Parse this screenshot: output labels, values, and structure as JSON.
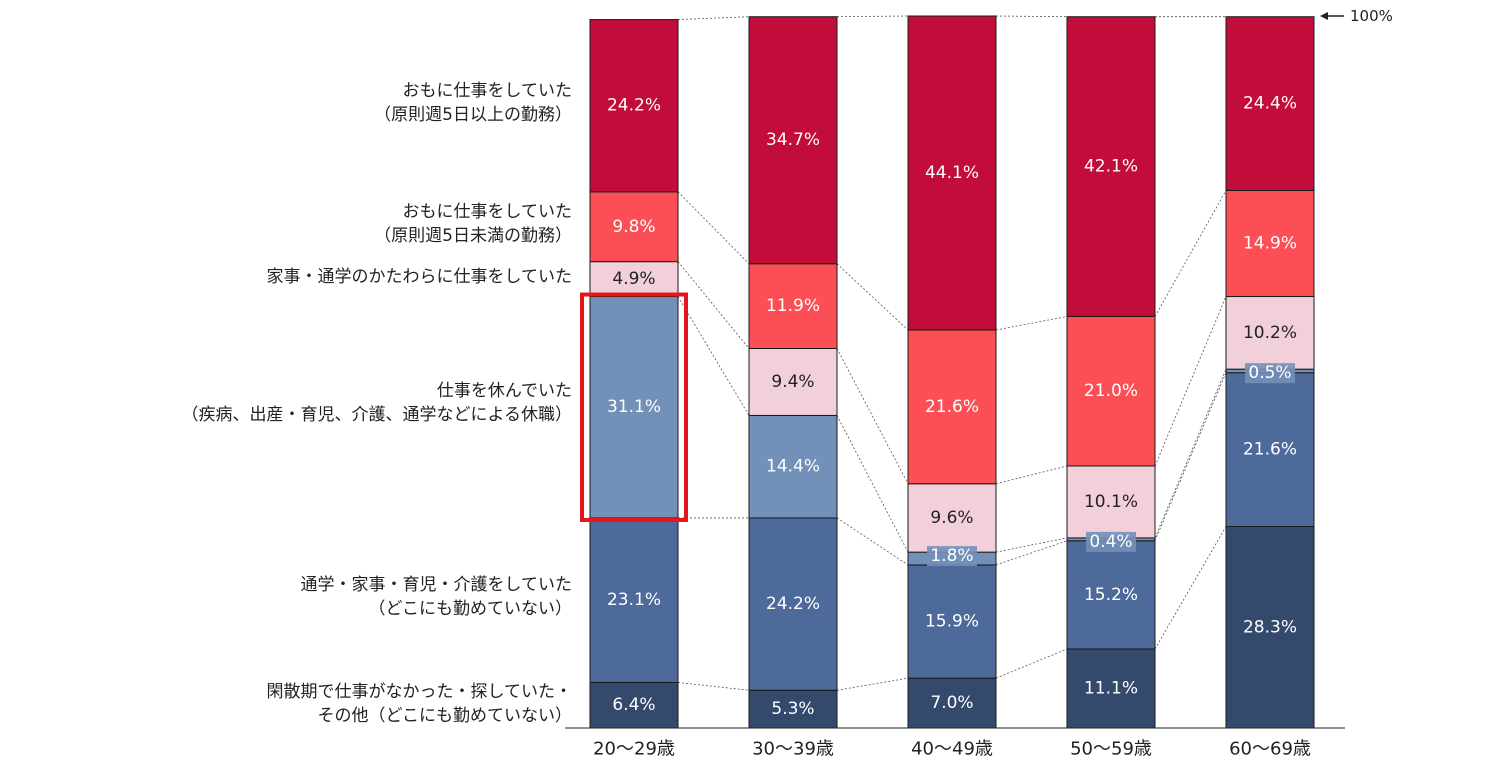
{
  "chart_data": {
    "type": "bar",
    "stacked": true,
    "percent": true,
    "categories": [
      "20〜29歳",
      "30〜39歳",
      "40〜49歳",
      "50〜59歳",
      "60〜69歳"
    ],
    "series": [
      {
        "name": "閑散期で仕事がなかった・探していた・その他（どこにも勤めていない）",
        "label_lines": [
          "閑散期で仕事がなかった・探していた・",
          "その他（どこにも勤めていない）"
        ],
        "color": "#344a6c",
        "text_color": "#ffffff",
        "values": [
          6.4,
          5.3,
          7.0,
          11.1,
          28.3
        ]
      },
      {
        "name": "通学・家事・育児・介護をしていた（どこにも勤めていない）",
        "label_lines": [
          "通学・家事・育児・介護をしていた",
          "（どこにも勤めていない）"
        ],
        "color": "#4d6a9a",
        "text_color": "#ffffff",
        "values": [
          23.1,
          24.2,
          15.9,
          15.2,
          21.6
        ]
      },
      {
        "name": "仕事を休んでいた（疾病、出産・育児、介護、通学などによる休職）",
        "label_lines": [
          "仕事を休んでいた",
          "（疾病、出産・育児、介護、通学などによる休職）"
        ],
        "color": "#7290b8",
        "text_color": "#ffffff",
        "values": [
          31.1,
          14.4,
          1.8,
          0.4,
          0.5
        ]
      },
      {
        "name": "家事・通学のかたわらに仕事をしていた",
        "label_lines": [
          "家事・通学のかたわらに仕事をしていた"
        ],
        "color": "#f1d0da",
        "text_color": "#222222",
        "values": [
          4.9,
          9.4,
          9.6,
          10.1,
          10.2
        ]
      },
      {
        "name": "おもに仕事をしていた（原則週5日未満の勤務）",
        "label_lines": [
          "おもに仕事をしていた",
          "（原則週5日未満の勤務）"
        ],
        "color": "#fc4f55",
        "text_color": "#ffffff",
        "values": [
          9.8,
          11.9,
          21.6,
          21.0,
          14.9
        ]
      },
      {
        "name": "おもに仕事をしていた（原則週5日以上の勤務）",
        "label_lines": [
          "おもに仕事をしていた",
          "（原則週5日以上の勤務）"
        ],
        "color": "#c20c3a",
        "text_color": "#ffffff",
        "values": [
          24.2,
          34.7,
          44.1,
          42.1,
          24.4
        ]
      }
    ],
    "data_labels": [
      [
        "6.4%",
        "5.3%",
        "7.0%",
        "11.1%",
        "28.3%"
      ],
      [
        "23.1%",
        "24.2%",
        "15.9%",
        "15.2%",
        "21.6%"
      ],
      [
        "31.1%",
        "14.4%",
        "1.8%",
        "0.4%",
        "0.5%"
      ],
      [
        "4.9%",
        "9.4%",
        "9.6%",
        "10.1%",
        "10.2%"
      ],
      [
        "9.8%",
        "11.9%",
        "21.6%",
        "21.0%",
        "14.9%"
      ],
      [
        "24.2%",
        "34.7%",
        "44.1%",
        "42.1%",
        "24.4%"
      ]
    ],
    "ylim": [
      0,
      100
    ],
    "annotations": {
      "top_marker": "100%",
      "highlight": {
        "series_index": 2,
        "category_index": 0,
        "color": "#e8141c"
      }
    },
    "connector_lines": true,
    "legend": "left, aligned to segments of first bar"
  }
}
